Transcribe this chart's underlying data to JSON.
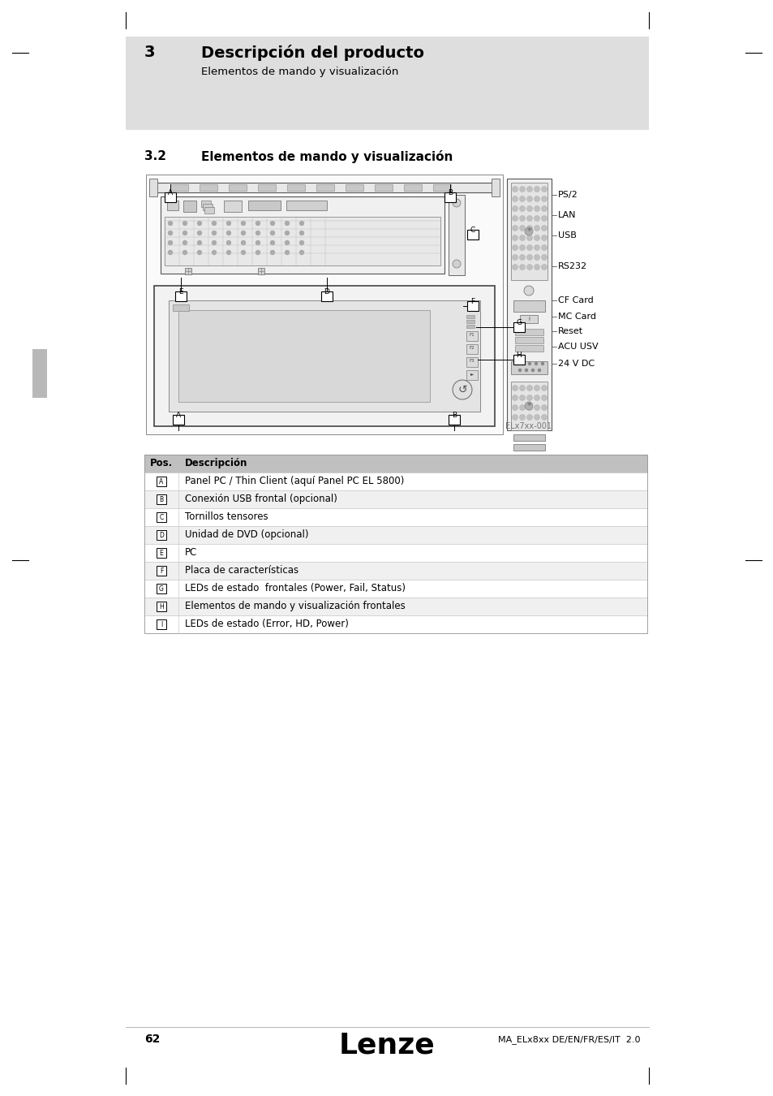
{
  "page_bg": "#ffffff",
  "header_bg": "#dedede",
  "header_number": "3",
  "header_title": "Descripción del producto",
  "header_subtitle": "Elementos de mando y visualización",
  "section_number": "3.2",
  "section_title": "Elementos de mando y visualización",
  "table_header_bg": "#c0c0c0",
  "table_row_bg1": "#ffffff",
  "table_row_bg2": "#f0f0f0",
  "table_col1_header": "Pos.",
  "table_col2_header": "Descripción",
  "table_rows": [
    [
      "A",
      "Panel PC / Thin Client (aquí Panel PC EL 5800)"
    ],
    [
      "B",
      "Conexión USB frontal (opcional)"
    ],
    [
      "C",
      "Tornillos tensores"
    ],
    [
      "D",
      "Unidad de DVD (opcional)"
    ],
    [
      "E",
      "PC"
    ],
    [
      "F",
      "Placa de características"
    ],
    [
      "G",
      "LEDs de estado  frontales (Power, Fail, Status)"
    ],
    [
      "H",
      "Elementos de mando y visualización frontales"
    ],
    [
      "I",
      "LEDs de estado (Error, HD, Power)"
    ]
  ],
  "footer_page": "62",
  "footer_logo": "Lenze",
  "footer_doc": "MA_ELx8xx DE/EN/FR/ES/IT  2.0",
  "diagram_caption": "ELx7xx-001",
  "right_labels": [
    "PS/2",
    "LAN",
    "USB",
    "RS232",
    "CF Card",
    "MC Card",
    "Reset",
    "ACU USV",
    "24 V DC"
  ]
}
